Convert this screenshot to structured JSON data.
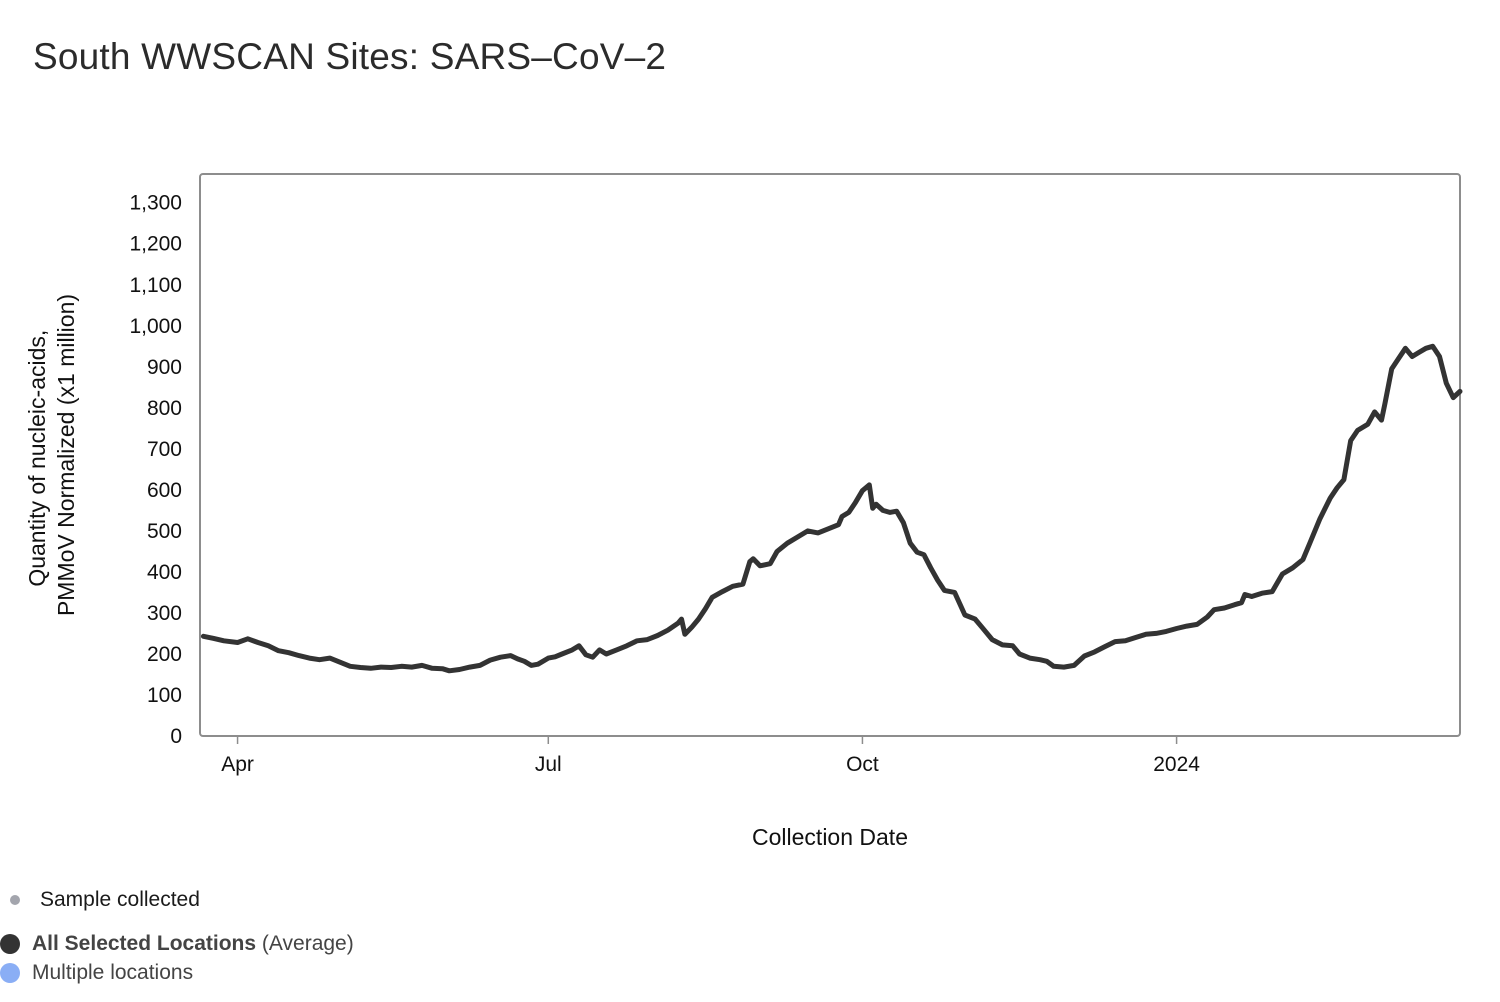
{
  "title": "South WWSCAN Sites: SARS–CoV–2",
  "legend": {
    "sample": {
      "label": "Sample collected",
      "color": "#a3a5ad"
    },
    "average": {
      "label_bold": "All Selected Locations",
      "label_suffix": " (Average)",
      "color": "#333333"
    },
    "multiple": {
      "label": "Multiple locations",
      "color": "#8aaef5"
    }
  },
  "chart_data": {
    "type": "line",
    "title": "South WWSCAN Sites: SARS–CoV–2",
    "xlabel": "Collection Date",
    "ylabel_lines": [
      "Quantity of nucleic-acids,",
      "PMMoV Normalized (x1 million)"
    ],
    "x_range": [
      "2023-03-21",
      "2024-03-24"
    ],
    "x_ticks": [
      {
        "date": "2023-04-01",
        "label": "Apr"
      },
      {
        "date": "2023-07-01",
        "label": "Jul"
      },
      {
        "date": "2023-10-01",
        "label": "Oct"
      },
      {
        "date": "2024-01-01",
        "label": "2024"
      }
    ],
    "ylim": [
      0,
      1370
    ],
    "y_ticks": [
      0,
      100,
      200,
      300,
      400,
      500,
      600,
      700,
      800,
      900,
      1000,
      1100,
      1200,
      1300
    ],
    "y_tick_labels": [
      "0",
      "100",
      "200",
      "300",
      "400",
      "500",
      "600",
      "700",
      "800",
      "900",
      "1,000",
      "1,100",
      "1,200",
      "1,300"
    ],
    "grid": false,
    "legend_position": "bottom-left",
    "series": [
      {
        "name": "All Selected Locations",
        "color": "#333333",
        "points": [
          [
            "2023-03-22",
            243
          ],
          [
            "2023-03-25",
            238
          ],
          [
            "2023-03-28",
            232
          ],
          [
            "2023-04-01",
            228
          ],
          [
            "2023-04-04",
            237
          ],
          [
            "2023-04-07",
            228
          ],
          [
            "2023-04-10",
            220
          ],
          [
            "2023-04-13",
            208
          ],
          [
            "2023-04-16",
            203
          ],
          [
            "2023-04-19",
            196
          ],
          [
            "2023-04-22",
            190
          ],
          [
            "2023-04-25",
            186
          ],
          [
            "2023-04-28",
            190
          ],
          [
            "2023-05-01",
            180
          ],
          [
            "2023-05-04",
            170
          ],
          [
            "2023-05-07",
            167
          ],
          [
            "2023-05-10",
            165
          ],
          [
            "2023-05-13",
            168
          ],
          [
            "2023-05-16",
            167
          ],
          [
            "2023-05-19",
            170
          ],
          [
            "2023-05-22",
            168
          ],
          [
            "2023-05-25",
            172
          ],
          [
            "2023-05-28",
            165
          ],
          [
            "2023-05-31",
            164
          ],
          [
            "2023-06-02",
            159
          ],
          [
            "2023-06-05",
            162
          ],
          [
            "2023-06-08",
            168
          ],
          [
            "2023-06-11",
            172
          ],
          [
            "2023-06-14",
            185
          ],
          [
            "2023-06-17",
            192
          ],
          [
            "2023-06-20",
            196
          ],
          [
            "2023-06-22",
            188
          ],
          [
            "2023-06-24",
            182
          ],
          [
            "2023-06-26",
            172
          ],
          [
            "2023-06-28",
            175
          ],
          [
            "2023-07-01",
            190
          ],
          [
            "2023-07-03",
            193
          ],
          [
            "2023-07-05",
            200
          ],
          [
            "2023-07-08",
            210
          ],
          [
            "2023-07-10",
            220
          ],
          [
            "2023-07-12",
            198
          ],
          [
            "2023-07-14",
            192
          ],
          [
            "2023-07-16",
            210
          ],
          [
            "2023-07-18",
            200
          ],
          [
            "2023-07-21",
            210
          ],
          [
            "2023-07-24",
            220
          ],
          [
            "2023-07-27",
            232
          ],
          [
            "2023-07-30",
            235
          ],
          [
            "2023-08-02",
            245
          ],
          [
            "2023-08-05",
            258
          ],
          [
            "2023-08-08",
            275
          ],
          [
            "2023-08-09",
            285
          ],
          [
            "2023-08-10",
            248
          ],
          [
            "2023-08-12",
            265
          ],
          [
            "2023-08-14",
            285
          ],
          [
            "2023-08-16",
            310
          ],
          [
            "2023-08-18",
            338
          ],
          [
            "2023-08-21",
            352
          ],
          [
            "2023-08-24",
            365
          ],
          [
            "2023-08-27",
            370
          ],
          [
            "2023-08-29",
            425
          ],
          [
            "2023-08-30",
            432
          ],
          [
            "2023-09-01",
            415
          ],
          [
            "2023-09-04",
            420
          ],
          [
            "2023-09-06",
            450
          ],
          [
            "2023-09-09",
            470
          ],
          [
            "2023-09-12",
            485
          ],
          [
            "2023-09-15",
            500
          ],
          [
            "2023-09-18",
            495
          ],
          [
            "2023-09-21",
            505
          ],
          [
            "2023-09-24",
            515
          ],
          [
            "2023-09-25",
            535
          ],
          [
            "2023-09-27",
            545
          ],
          [
            "2023-09-29",
            570
          ],
          [
            "2023-10-01",
            598
          ],
          [
            "2023-10-03",
            612
          ],
          [
            "2023-10-04",
            555
          ],
          [
            "2023-10-05",
            565
          ],
          [
            "2023-10-07",
            550
          ],
          [
            "2023-10-09",
            545
          ],
          [
            "2023-10-11",
            548
          ],
          [
            "2023-10-13",
            520
          ],
          [
            "2023-10-15",
            470
          ],
          [
            "2023-10-17",
            448
          ],
          [
            "2023-10-19",
            442
          ],
          [
            "2023-10-21",
            410
          ],
          [
            "2023-10-23",
            380
          ],
          [
            "2023-10-25",
            355
          ],
          [
            "2023-10-28",
            350
          ],
          [
            "2023-10-31",
            295
          ],
          [
            "2023-11-03",
            285
          ],
          [
            "2023-11-05",
            265
          ],
          [
            "2023-11-08",
            235
          ],
          [
            "2023-11-11",
            222
          ],
          [
            "2023-11-14",
            220
          ],
          [
            "2023-11-16",
            200
          ],
          [
            "2023-11-19",
            190
          ],
          [
            "2023-11-22",
            186
          ],
          [
            "2023-11-24",
            182
          ],
          [
            "2023-11-26",
            170
          ],
          [
            "2023-11-29",
            168
          ],
          [
            "2023-12-02",
            172
          ],
          [
            "2023-12-05",
            195
          ],
          [
            "2023-12-08",
            205
          ],
          [
            "2023-12-11",
            218
          ],
          [
            "2023-12-14",
            230
          ],
          [
            "2023-12-17",
            232
          ],
          [
            "2023-12-20",
            240
          ],
          [
            "2023-12-23",
            248
          ],
          [
            "2023-12-26",
            250
          ],
          [
            "2023-12-29",
            255
          ],
          [
            "2024-01-01",
            262
          ],
          [
            "2024-01-04",
            268
          ],
          [
            "2024-01-07",
            272
          ],
          [
            "2024-01-10",
            290
          ],
          [
            "2024-01-12",
            308
          ],
          [
            "2024-01-15",
            312
          ],
          [
            "2024-01-18",
            320
          ],
          [
            "2024-01-20",
            325
          ],
          [
            "2024-01-21",
            345
          ],
          [
            "2024-01-23",
            340
          ],
          [
            "2024-01-26",
            348
          ],
          [
            "2024-01-29",
            352
          ],
          [
            "2024-02-01",
            395
          ],
          [
            "2024-02-04",
            410
          ],
          [
            "2024-02-07",
            430
          ],
          [
            "2024-02-09",
            470
          ],
          [
            "2024-02-12",
            530
          ],
          [
            "2024-02-15",
            580
          ],
          [
            "2024-02-17",
            605
          ],
          [
            "2024-02-19",
            625
          ],
          [
            "2024-02-21",
            720
          ],
          [
            "2024-02-23",
            745
          ],
          [
            "2024-02-26",
            760
          ],
          [
            "2024-02-28",
            790
          ],
          [
            "2024-03-01",
            770
          ],
          [
            "2024-03-02",
            810
          ],
          [
            "2024-03-04",
            895
          ],
          [
            "2024-03-06",
            920
          ],
          [
            "2024-03-08",
            945
          ],
          [
            "2024-03-10",
            925
          ],
          [
            "2024-03-12",
            935
          ],
          [
            "2024-03-14",
            945
          ],
          [
            "2024-03-16",
            950
          ],
          [
            "2024-03-18",
            925
          ],
          [
            "2024-03-20",
            860
          ],
          [
            "2024-03-22",
            825
          ],
          [
            "2024-03-24",
            840
          ]
        ]
      }
    ]
  }
}
